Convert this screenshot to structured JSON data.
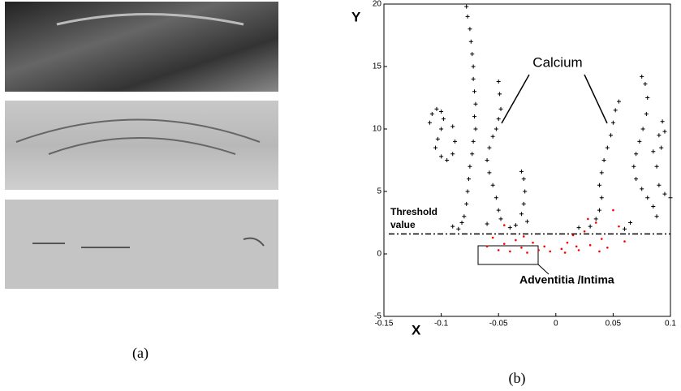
{
  "figure": {
    "panel_a_label": "(a)",
    "panel_b_label": "(b)"
  },
  "chart_data": {
    "type": "scatter",
    "x_label": "X",
    "y_label": "Y",
    "xlim": [
      -0.15,
      0.1
    ],
    "ylim": [
      -5,
      20
    ],
    "xticks": [
      -0.15,
      -0.1,
      -0.05,
      0,
      0.05,
      0.1
    ],
    "yticks": [
      -5,
      0,
      5,
      10,
      15,
      20
    ],
    "threshold": 1.6,
    "annotations": [
      "Calcium",
      "Threshold",
      "value",
      "Adventitia /Intima"
    ],
    "series": [
      {
        "color": "#000000",
        "marker": "+",
        "x": [
          -0.078,
          -0.077,
          -0.075,
          -0.074,
          -0.073,
          -0.072,
          -0.072,
          -0.071,
          -0.07,
          -0.071,
          -0.07,
          -0.072,
          -0.073,
          -0.075,
          -0.076,
          -0.077,
          -0.078,
          -0.08,
          -0.082,
          -0.11,
          -0.108,
          -0.104,
          -0.1,
          -0.098,
          -0.1,
          -0.103,
          -0.105,
          -0.1,
          -0.095,
          -0.09,
          -0.088,
          -0.09,
          -0.05,
          -0.049,
          -0.048,
          -0.05,
          -0.052,
          -0.055,
          -0.058,
          -0.06,
          -0.058,
          -0.055,
          -0.052,
          -0.05,
          -0.048,
          -0.03,
          -0.028,
          -0.027,
          -0.028,
          -0.03,
          -0.025,
          -0.035,
          -0.09,
          -0.085,
          -0.06,
          -0.04,
          0.055,
          0.052,
          0.05,
          0.048,
          0.045,
          0.042,
          0.04,
          0.038,
          0.04,
          0.038,
          0.035,
          0.03,
          0.075,
          0.078,
          0.08,
          0.079,
          0.076,
          0.073,
          0.07,
          0.068,
          0.07,
          0.075,
          0.08,
          0.085,
          0.088,
          0.09,
          0.088,
          0.085,
          0.09,
          0.093,
          0.095,
          0.092,
          0.06,
          0.065,
          0.02,
          0.095,
          0.1
        ],
        "values": [
          19.8,
          19,
          18,
          17,
          16,
          15,
          14,
          13,
          12,
          11,
          10,
          9,
          8,
          7,
          6,
          5,
          4,
          3,
          2.5,
          10.5,
          11.2,
          11.6,
          11.4,
          10.8,
          10,
          9.2,
          8.5,
          7.8,
          7.5,
          8,
          9,
          10.2,
          13.8,
          12.8,
          11.6,
          10.8,
          10,
          9.4,
          8.5,
          7.5,
          6.5,
          5.5,
          4.5,
          3.5,
          2.8,
          6.6,
          6,
          5,
          4,
          3.2,
          2.6,
          2.3,
          2.2,
          2,
          2.4,
          2.1,
          12.2,
          11.5,
          10.5,
          9.5,
          8.5,
          7.5,
          6.5,
          5.5,
          4.5,
          3.5,
          2.8,
          2.2,
          14.2,
          13.6,
          12.5,
          11.2,
          10,
          9,
          8,
          7,
          6,
          5.2,
          4.5,
          3.8,
          3,
          5.5,
          7,
          8.2,
          9.5,
          10.6,
          9.8,
          8.5,
          2,
          2.5,
          2.1,
          4.8,
          4.5
        ]
      },
      {
        "color": "#ff0000",
        "marker": ".",
        "x": [
          -0.05,
          -0.045,
          -0.04,
          -0.035,
          -0.03,
          -0.025,
          -0.02,
          -0.015,
          -0.01,
          -0.005,
          0.005,
          0.01,
          0.015,
          0.02,
          0.025,
          0.03,
          0.035,
          0.04,
          0.045,
          0.05,
          0.055,
          0.06,
          -0.055,
          -0.06,
          -0.045,
          0.028,
          0.008,
          -0.028,
          0.018,
          0.038
        ],
        "values": [
          0.3,
          0.8,
          0.2,
          1.1,
          0.5,
          0.1,
          0.9,
          0.3,
          0.6,
          0.2,
          0.4,
          0.9,
          1.5,
          0.3,
          1.8,
          0.7,
          2.5,
          1.2,
          0.5,
          3.5,
          2.2,
          1,
          1.3,
          0.6,
          2.3,
          2.8,
          0.1,
          1.4,
          0.6,
          0.2
        ]
      }
    ]
  }
}
